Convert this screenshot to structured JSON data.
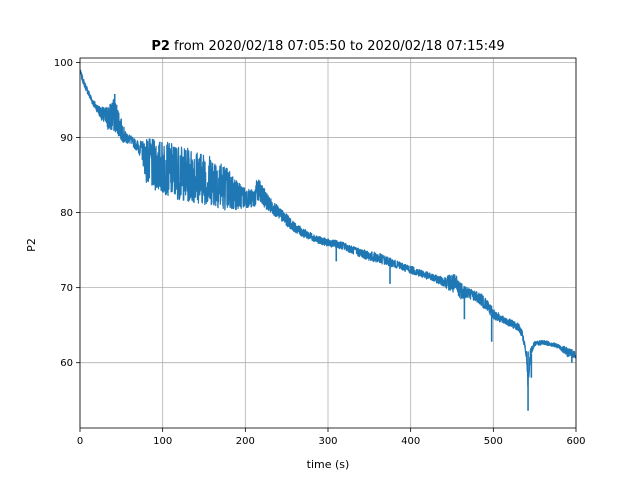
{
  "chart_data": {
    "type": "line",
    "title_bold": "P2",
    "title_rest": " from 2020/02/18 07:05:50 to 2020/02/18 07:15:49",
    "xlabel": "time (s)",
    "ylabel": "P2",
    "xlim": [
      0,
      600
    ],
    "ylim": [
      51.3,
      100.6
    ],
    "xticks": [
      0,
      100,
      200,
      300,
      400,
      500,
      600
    ],
    "yticks": [
      60,
      70,
      80,
      90,
      100
    ],
    "grid": true,
    "series": [
      {
        "color": "#1f77b4",
        "x": [
          0,
          5,
          10,
          15,
          20,
          25,
          30,
          35,
          40,
          45,
          50,
          55,
          60,
          65,
          70,
          75,
          80,
          90,
          100,
          110,
          120,
          130,
          140,
          150,
          160,
          170,
          180,
          190,
          200,
          210,
          215,
          220,
          230,
          240,
          250,
          260,
          270,
          280,
          290,
          300,
          310,
          320,
          330,
          340,
          350,
          360,
          370,
          380,
          390,
          400,
          410,
          420,
          430,
          440,
          450,
          455,
          460,
          470,
          480,
          490,
          500,
          510,
          520,
          530,
          535,
          540,
          542,
          545,
          550,
          560,
          570,
          580,
          590,
          600
        ],
        "center": [
          98.8,
          97.2,
          96.0,
          94.8,
          94.0,
          93.3,
          92.8,
          92.6,
          93.0,
          92.5,
          91.0,
          90.0,
          89.8,
          89.3,
          88.8,
          88.3,
          87.0,
          86.3,
          86.0,
          85.7,
          85.3,
          85.0,
          84.8,
          84.5,
          84.2,
          83.7,
          83.0,
          82.3,
          82.0,
          81.8,
          83.0,
          82.3,
          81.0,
          80.0,
          79.0,
          78.0,
          77.3,
          76.8,
          76.3,
          76.0,
          75.8,
          75.5,
          75.0,
          74.6,
          74.2,
          74.0,
          73.6,
          73.2,
          72.8,
          72.4,
          72.0,
          71.6,
          71.2,
          70.8,
          70.6,
          70.3,
          69.7,
          69.3,
          68.8,
          68.0,
          66.5,
          65.8,
          65.3,
          64.8,
          63.8,
          61.0,
          57.0,
          61.5,
          62.5,
          62.7,
          62.5,
          62.1,
          61.4,
          61.0
        ],
        "half_range": [
          0.4,
          0.4,
          0.4,
          0.4,
          0.5,
          0.8,
          1.2,
          1.8,
          2.2,
          2.0,
          1.5,
          0.8,
          0.6,
          0.6,
          0.8,
          1.2,
          3.0,
          3.4,
          3.5,
          3.6,
          3.6,
          3.6,
          3.5,
          3.4,
          3.3,
          3.2,
          2.8,
          2.0,
          1.3,
          1.2,
          1.8,
          1.4,
          1.0,
          0.8,
          0.8,
          0.6,
          0.6,
          0.5,
          0.5,
          0.5,
          0.5,
          0.5,
          0.5,
          0.6,
          0.6,
          0.7,
          0.6,
          0.5,
          0.5,
          0.5,
          0.5,
          0.5,
          0.5,
          0.6,
          1.3,
          1.4,
          1.2,
          0.7,
          0.7,
          0.9,
          0.7,
          0.5,
          0.5,
          0.5,
          0.5,
          0.5,
          1.2,
          0.6,
          0.3,
          0.3,
          0.3,
          0.3,
          0.6,
          0.4
        ],
        "spikes": [
          {
            "x": 542,
            "min": 53.6,
            "max": 61.5
          },
          {
            "x": 546,
            "min": 58.0,
            "max": 61.2
          },
          {
            "x": 465,
            "min": 65.8,
            "max": 70.0
          },
          {
            "x": 498,
            "min": 62.8,
            "max": 66.5
          },
          {
            "x": 375,
            "min": 70.5,
            "max": 73.5
          },
          {
            "x": 310,
            "min": 73.5,
            "max": 76.0
          },
          {
            "x": 42,
            "min": 91.0,
            "max": 95.8
          },
          {
            "x": 595,
            "min": 60.0,
            "max": 61.8
          }
        ]
      }
    ]
  }
}
